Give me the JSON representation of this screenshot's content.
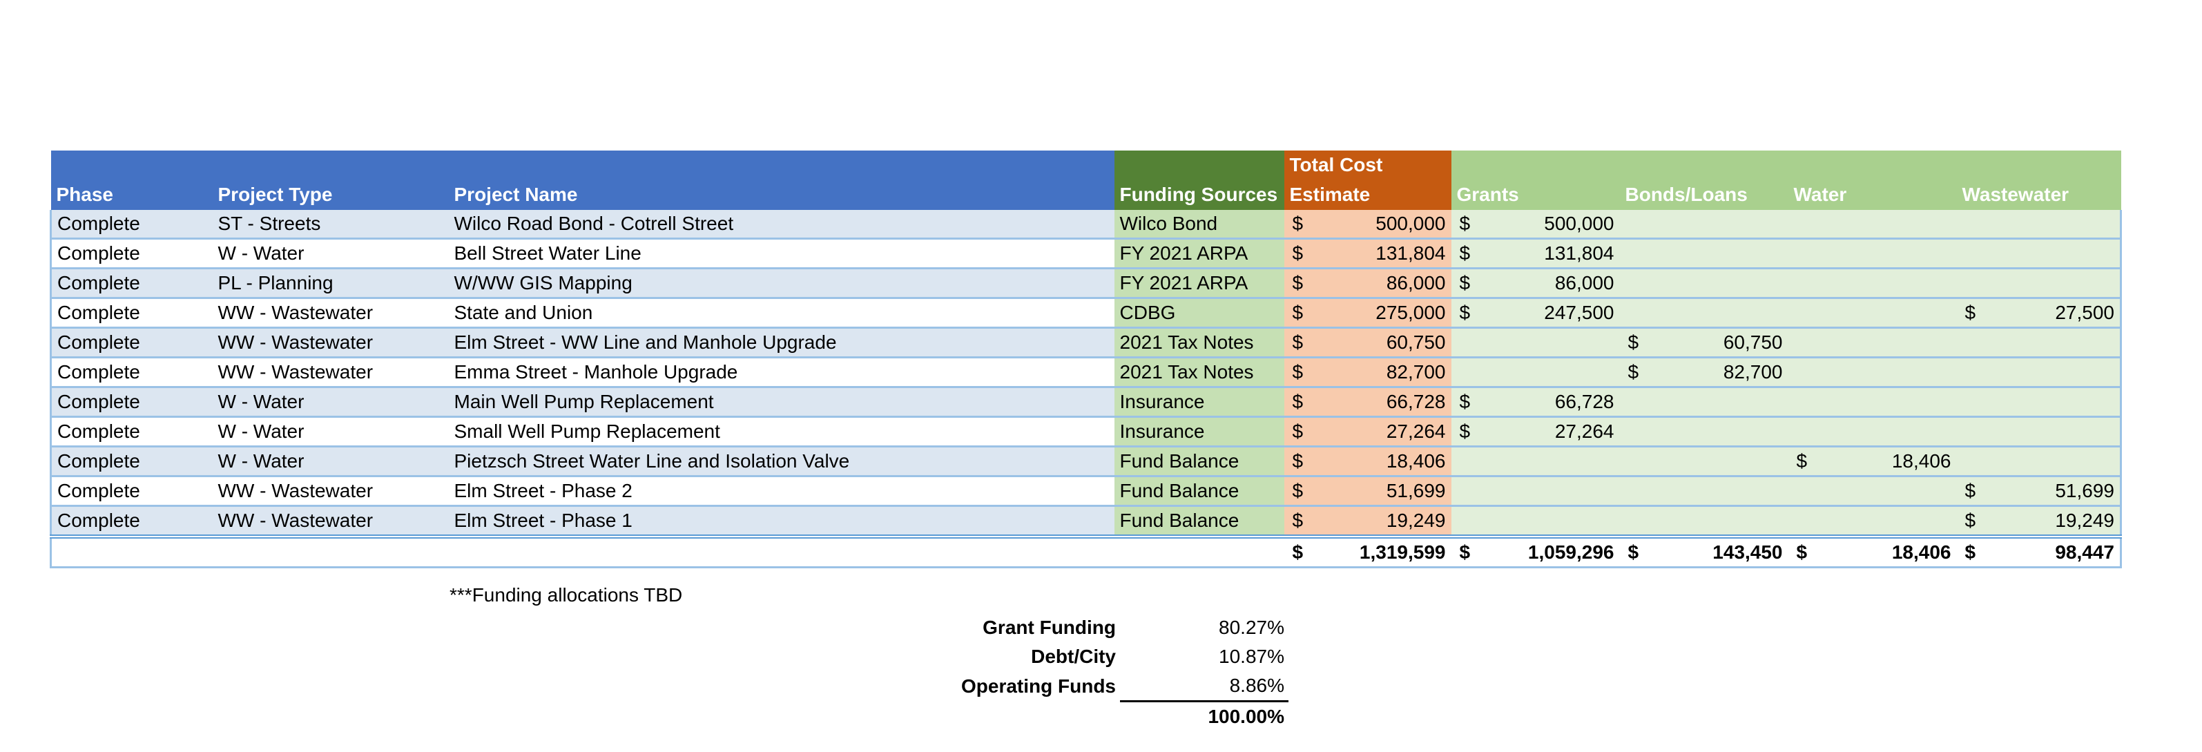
{
  "headers": {
    "phase": "Phase",
    "project_type": "Project Type",
    "project_name": "Project Name",
    "funding_sources": "Funding Sources",
    "total_cost_line1": "Total Cost",
    "total_cost_line2": "Estimate",
    "grants": "Grants",
    "bonds_loans": "Bonds/Loans",
    "water": "Water",
    "wastewater": "Wastewater"
  },
  "currency_symbol": "$",
  "rows": [
    {
      "phase": "Complete",
      "type": "ST - Streets",
      "name": "Wilco Road Bond - Cotrell Street",
      "source": "Wilco Bond",
      "cost": "500,000",
      "grants": "500,000",
      "bonds": "",
      "water": "",
      "wastewater": ""
    },
    {
      "phase": "Complete",
      "type": "W - Water",
      "name": "Bell Street Water Line",
      "source": "FY 2021 ARPA",
      "cost": "131,804",
      "grants": "131,804",
      "bonds": "",
      "water": "",
      "wastewater": ""
    },
    {
      "phase": "Complete",
      "type": "PL - Planning",
      "name": "W/WW GIS Mapping",
      "source": "FY 2021 ARPA",
      "cost": "86,000",
      "grants": "86,000",
      "bonds": "",
      "water": "",
      "wastewater": ""
    },
    {
      "phase": "Complete",
      "type": "WW - Wastewater",
      "name": "State and Union",
      "source": "CDBG",
      "cost": "275,000",
      "grants": "247,500",
      "bonds": "",
      "water": "",
      "wastewater": "27,500"
    },
    {
      "phase": "Complete",
      "type": "WW - Wastewater",
      "name": "Elm Street - WW Line and Manhole Upgrade",
      "source": "2021 Tax Notes",
      "cost": "60,750",
      "grants": "",
      "bonds": "60,750",
      "water": "",
      "wastewater": ""
    },
    {
      "phase": "Complete",
      "type": "WW - Wastewater",
      "name": "Emma Street - Manhole Upgrade",
      "source": "2021 Tax Notes",
      "cost": "82,700",
      "grants": "",
      "bonds": "82,700",
      "water": "",
      "wastewater": ""
    },
    {
      "phase": "Complete",
      "type": "W - Water",
      "name": "Main Well Pump Replacement",
      "source": "Insurance",
      "cost": "66,728",
      "grants": "66,728",
      "bonds": "",
      "water": "",
      "wastewater": ""
    },
    {
      "phase": "Complete",
      "type": "W - Water",
      "name": "Small Well Pump Replacement",
      "source": "Insurance",
      "cost": "27,264",
      "grants": "27,264",
      "bonds": "",
      "water": "",
      "wastewater": ""
    },
    {
      "phase": "Complete",
      "type": "W - Water",
      "name": "Pietzsch Street Water Line and Isolation Valve",
      "source": "Fund Balance",
      "cost": "18,406",
      "grants": "",
      "bonds": "",
      "water": "18,406",
      "wastewater": ""
    },
    {
      "phase": "Complete",
      "type": "WW - Wastewater",
      "name": "Elm Street - Phase 2",
      "source": "Fund Balance",
      "cost": "51,699",
      "grants": "",
      "bonds": "",
      "water": "",
      "wastewater": "51,699"
    },
    {
      "phase": "Complete",
      "type": "WW - Wastewater",
      "name": "Elm Street - Phase 1",
      "source": "Fund Balance",
      "cost": "19,249",
      "grants": "",
      "bonds": "",
      "water": "",
      "wastewater": "19,249"
    }
  ],
  "totals": {
    "cost": "1,319,599",
    "grants": "1,059,296",
    "bonds": "143,450",
    "water": "18,406",
    "wastewater": "98,447"
  },
  "note": "***Funding allocations TBD",
  "summary": [
    {
      "label": "Grant Funding",
      "value": "80.27%"
    },
    {
      "label": "Debt/City",
      "value": "10.87%"
    },
    {
      "label": "Operating Funds",
      "value": "8.86%"
    }
  ],
  "summary_total": "100.00%",
  "colors": {
    "header_blue": "#4472c4",
    "funding_header": "#548235",
    "cost_header": "#c55a11",
    "allocation_header": "#a9d08e",
    "row_band": "#dce6f1",
    "cost_fill": "#f8cbad",
    "funding_fill": "#c6e0b4",
    "allocation_fill": "#e2efda"
  }
}
